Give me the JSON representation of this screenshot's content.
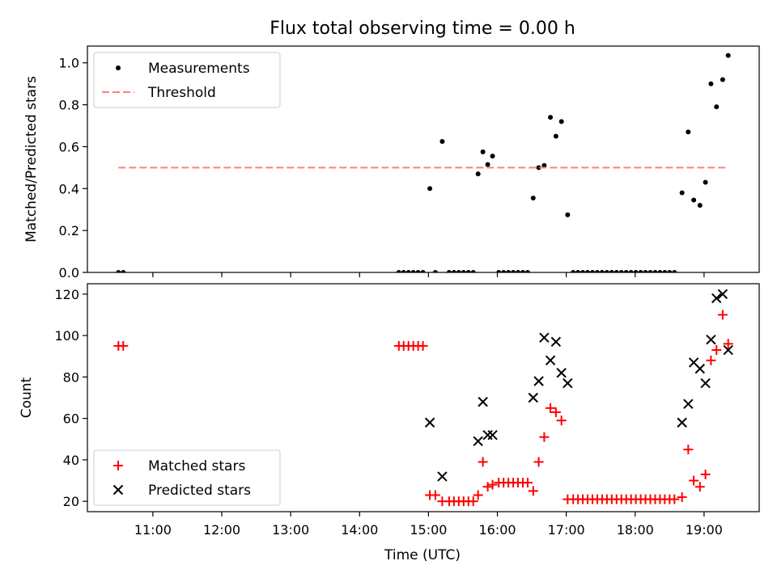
{
  "figure": {
    "title": "Flux total observing time = 0.00 h",
    "xlabel": "Time (UTC)",
    "x_tick_labels": [
      "11:00",
      "12:00",
      "13:00",
      "14:00",
      "15:00",
      "16:00",
      "17:00",
      "18:00",
      "19:00"
    ]
  },
  "chart_data": [
    {
      "type": "scatter",
      "panel": "top",
      "title": "Flux total observing time = 0.00 h",
      "xlabel": "",
      "ylabel": "Matched/Predicted stars",
      "x_unit": "hours UTC",
      "xlim": [
        10.05,
        19.8
      ],
      "ylim": [
        0.0,
        1.08
      ],
      "y_ticks": [
        0.0,
        0.2,
        0.4,
        0.6,
        0.8,
        1.0
      ],
      "y_tick_labels": [
        "0.0",
        "0.2",
        "0.4",
        "0.6",
        "0.8",
        "1.0"
      ],
      "legend_position": "upper left",
      "series": [
        {
          "name": "Measurements",
          "marker": "dot",
          "color": "#000000",
          "points": [
            [
              10.5,
              0
            ],
            [
              10.57,
              0
            ],
            [
              14.57,
              0
            ],
            [
              14.64,
              0
            ],
            [
              14.71,
              0
            ],
            [
              14.78,
              0
            ],
            [
              14.85,
              0
            ],
            [
              14.92,
              0
            ],
            [
              15.02,
              0.4
            ],
            [
              15.1,
              0
            ],
            [
              15.2,
              0.625
            ],
            [
              15.3,
              0
            ],
            [
              15.37,
              0
            ],
            [
              15.44,
              0
            ],
            [
              15.51,
              0
            ],
            [
              15.58,
              0
            ],
            [
              15.65,
              0
            ],
            [
              15.72,
              0.47
            ],
            [
              15.79,
              0.575
            ],
            [
              15.86,
              0.515
            ],
            [
              15.93,
              0.555
            ],
            [
              16.02,
              0
            ],
            [
              16.09,
              0
            ],
            [
              16.16,
              0
            ],
            [
              16.23,
              0
            ],
            [
              16.3,
              0
            ],
            [
              16.37,
              0
            ],
            [
              16.44,
              0
            ],
            [
              16.52,
              0.355
            ],
            [
              16.6,
              0.5
            ],
            [
              16.68,
              0.51
            ],
            [
              16.77,
              0.74
            ],
            [
              16.85,
              0.65
            ],
            [
              16.93,
              0.72
            ],
            [
              17.02,
              0.275
            ],
            [
              17.1,
              0
            ],
            [
              17.17,
              0
            ],
            [
              17.24,
              0
            ],
            [
              17.31,
              0
            ],
            [
              17.38,
              0
            ],
            [
              17.45,
              0
            ],
            [
              17.52,
              0
            ],
            [
              17.59,
              0
            ],
            [
              17.66,
              0
            ],
            [
              17.73,
              0
            ],
            [
              17.8,
              0
            ],
            [
              17.87,
              0
            ],
            [
              17.94,
              0
            ],
            [
              18.01,
              0
            ],
            [
              18.08,
              0
            ],
            [
              18.15,
              0
            ],
            [
              18.22,
              0
            ],
            [
              18.29,
              0
            ],
            [
              18.36,
              0
            ],
            [
              18.43,
              0
            ],
            [
              18.5,
              0
            ],
            [
              18.57,
              0
            ],
            [
              18.68,
              0.38
            ],
            [
              18.77,
              0.67
            ],
            [
              18.85,
              0.345
            ],
            [
              18.94,
              0.32
            ],
            [
              19.02,
              0.43
            ],
            [
              19.1,
              0.9
            ],
            [
              19.18,
              0.79
            ],
            [
              19.27,
              0.92
            ],
            [
              19.35,
              1.035
            ]
          ]
        },
        {
          "name": "Threshold",
          "line_style": "dashed",
          "color": "#ff7f7f",
          "points": [
            [
              10.5,
              0.5
            ],
            [
              19.35,
              0.5
            ]
          ]
        }
      ]
    },
    {
      "type": "scatter",
      "panel": "bottom",
      "xlabel": "Time (UTC)",
      "ylabel": "Count",
      "x_unit": "hours UTC",
      "xlim": [
        10.05,
        19.8
      ],
      "ylim": [
        15,
        125
      ],
      "y_ticks": [
        20,
        40,
        60,
        80,
        100,
        120
      ],
      "y_tick_labels": [
        "20",
        "40",
        "60",
        "80",
        "100",
        "120"
      ],
      "x_ticks": [
        11,
        12,
        13,
        14,
        15,
        16,
        17,
        18,
        19
      ],
      "x_tick_labels": [
        "11:00",
        "12:00",
        "13:00",
        "14:00",
        "15:00",
        "16:00",
        "17:00",
        "18:00",
        "19:00"
      ],
      "legend_position": "lower left",
      "series": [
        {
          "name": "Matched stars",
          "marker": "plus",
          "color": "#ff0000",
          "points": [
            [
              10.5,
              95
            ],
            [
              10.57,
              95
            ],
            [
              14.57,
              95
            ],
            [
              14.64,
              95
            ],
            [
              14.71,
              95
            ],
            [
              14.78,
              95
            ],
            [
              14.85,
              95
            ],
            [
              14.92,
              95
            ],
            [
              15.02,
              23
            ],
            [
              15.1,
              23
            ],
            [
              15.2,
              20
            ],
            [
              15.3,
              20
            ],
            [
              15.37,
              20
            ],
            [
              15.44,
              20
            ],
            [
              15.51,
              20
            ],
            [
              15.58,
              20
            ],
            [
              15.65,
              20
            ],
            [
              15.72,
              23
            ],
            [
              15.79,
              39
            ],
            [
              15.86,
              27
            ],
            [
              15.93,
              28
            ],
            [
              16.02,
              29
            ],
            [
              16.09,
              29
            ],
            [
              16.16,
              29
            ],
            [
              16.23,
              29
            ],
            [
              16.3,
              29
            ],
            [
              16.37,
              29
            ],
            [
              16.44,
              29
            ],
            [
              16.52,
              25
            ],
            [
              16.6,
              39
            ],
            [
              16.68,
              51
            ],
            [
              16.77,
              65
            ],
            [
              16.85,
              63
            ],
            [
              16.93,
              59
            ],
            [
              17.02,
              21
            ],
            [
              17.1,
              21
            ],
            [
              17.17,
              21
            ],
            [
              17.24,
              21
            ],
            [
              17.31,
              21
            ],
            [
              17.38,
              21
            ],
            [
              17.45,
              21
            ],
            [
              17.52,
              21
            ],
            [
              17.59,
              21
            ],
            [
              17.66,
              21
            ],
            [
              17.73,
              21
            ],
            [
              17.8,
              21
            ],
            [
              17.87,
              21
            ],
            [
              17.94,
              21
            ],
            [
              18.01,
              21
            ],
            [
              18.08,
              21
            ],
            [
              18.15,
              21
            ],
            [
              18.22,
              21
            ],
            [
              18.29,
              21
            ],
            [
              18.36,
              21
            ],
            [
              18.43,
              21
            ],
            [
              18.5,
              21
            ],
            [
              18.57,
              21
            ],
            [
              18.68,
              22
            ],
            [
              18.77,
              45
            ],
            [
              18.85,
              30
            ],
            [
              18.94,
              27
            ],
            [
              19.02,
              33
            ],
            [
              19.1,
              88
            ],
            [
              19.18,
              93
            ],
            [
              19.27,
              110
            ],
            [
              19.35,
              96
            ]
          ]
        },
        {
          "name": "Predicted stars",
          "marker": "x",
          "color": "#000000",
          "points": [
            [
              15.02,
              58
            ],
            [
              15.2,
              32
            ],
            [
              15.72,
              49
            ],
            [
              15.79,
              68
            ],
            [
              15.86,
              52
            ],
            [
              15.93,
              52
            ],
            [
              16.52,
              70
            ],
            [
              16.6,
              78
            ],
            [
              16.68,
              99
            ],
            [
              16.77,
              88
            ],
            [
              16.85,
              97
            ],
            [
              16.93,
              82
            ],
            [
              17.02,
              77
            ],
            [
              18.68,
              58
            ],
            [
              18.77,
              67
            ],
            [
              18.85,
              87
            ],
            [
              18.94,
              84
            ],
            [
              19.02,
              77
            ],
            [
              19.1,
              98
            ],
            [
              19.18,
              118
            ],
            [
              19.27,
              120
            ],
            [
              19.35,
              93
            ]
          ]
        }
      ]
    }
  ]
}
